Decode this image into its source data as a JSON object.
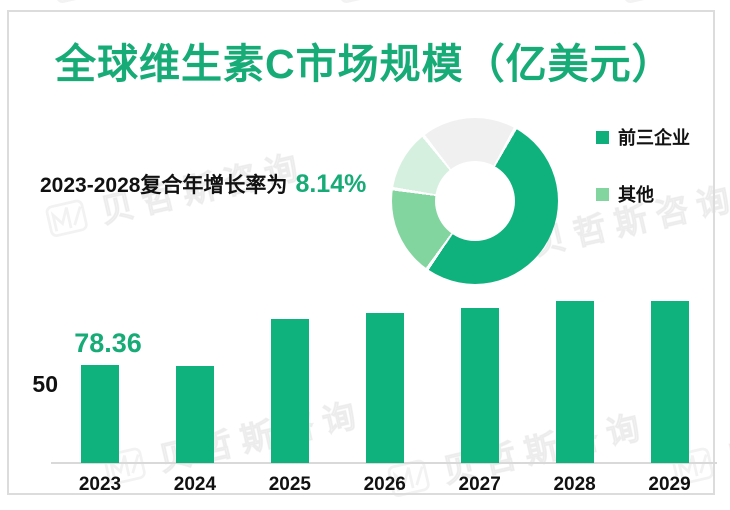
{
  "title": {
    "text": "全球维生素C市场规模（亿美元）"
  },
  "cagr": {
    "prefix": "2023-2028复合年增长率为",
    "value": "8.14%"
  },
  "legend": {
    "items": [
      {
        "label": "前三企业",
        "color": "#0FAF7B"
      },
      {
        "label": "其他",
        "color": "#82D59E"
      }
    ]
  },
  "watermark": {
    "text": "贝哲斯咨询"
  },
  "colors": {
    "title_green": "#16AB77",
    "primary_green": "#0FB17D",
    "medium_green": "#82D59E",
    "light_green": "#D6F0DF",
    "gray_segment": "#F0F0F0",
    "axis_gray": "#D9D9D9",
    "text_black": "#111111",
    "frame_gray": "#DCDCDC"
  },
  "chart_data": [
    {
      "type": "pie",
      "subtype": "donut",
      "legend_position": "right",
      "start_angle_deg": 29,
      "segments": [
        {
          "label": "前三企业",
          "value_pct": 51.7,
          "color": "#0FB17D"
        },
        {
          "label": "其他",
          "value_pct": 17.6,
          "color": "#82D59E"
        },
        {
          "label": "",
          "value_pct": 12.0,
          "color": "#D6F0DF"
        },
        {
          "label": "",
          "value_pct": 18.7,
          "color": "#F0F0F0"
        }
      ]
    },
    {
      "type": "bar",
      "title": "全球维生素C市场规模（亿美元）",
      "categories": [
        "2023",
        "2024",
        "2025",
        "2026",
        "2027",
        "2028",
        "2029"
      ],
      "values": [
        78.36,
        77.8,
        115.1,
        119.9,
        123.8,
        129.7,
        129.4
      ],
      "shown_value_labels": [
        {
          "category": "2023",
          "text": "78.36"
        }
      ],
      "y_axis_tick_labels": [
        "50"
      ],
      "xlabel": "",
      "ylabel": "",
      "grid": false,
      "bar_color": "#0FB17D"
    }
  ]
}
